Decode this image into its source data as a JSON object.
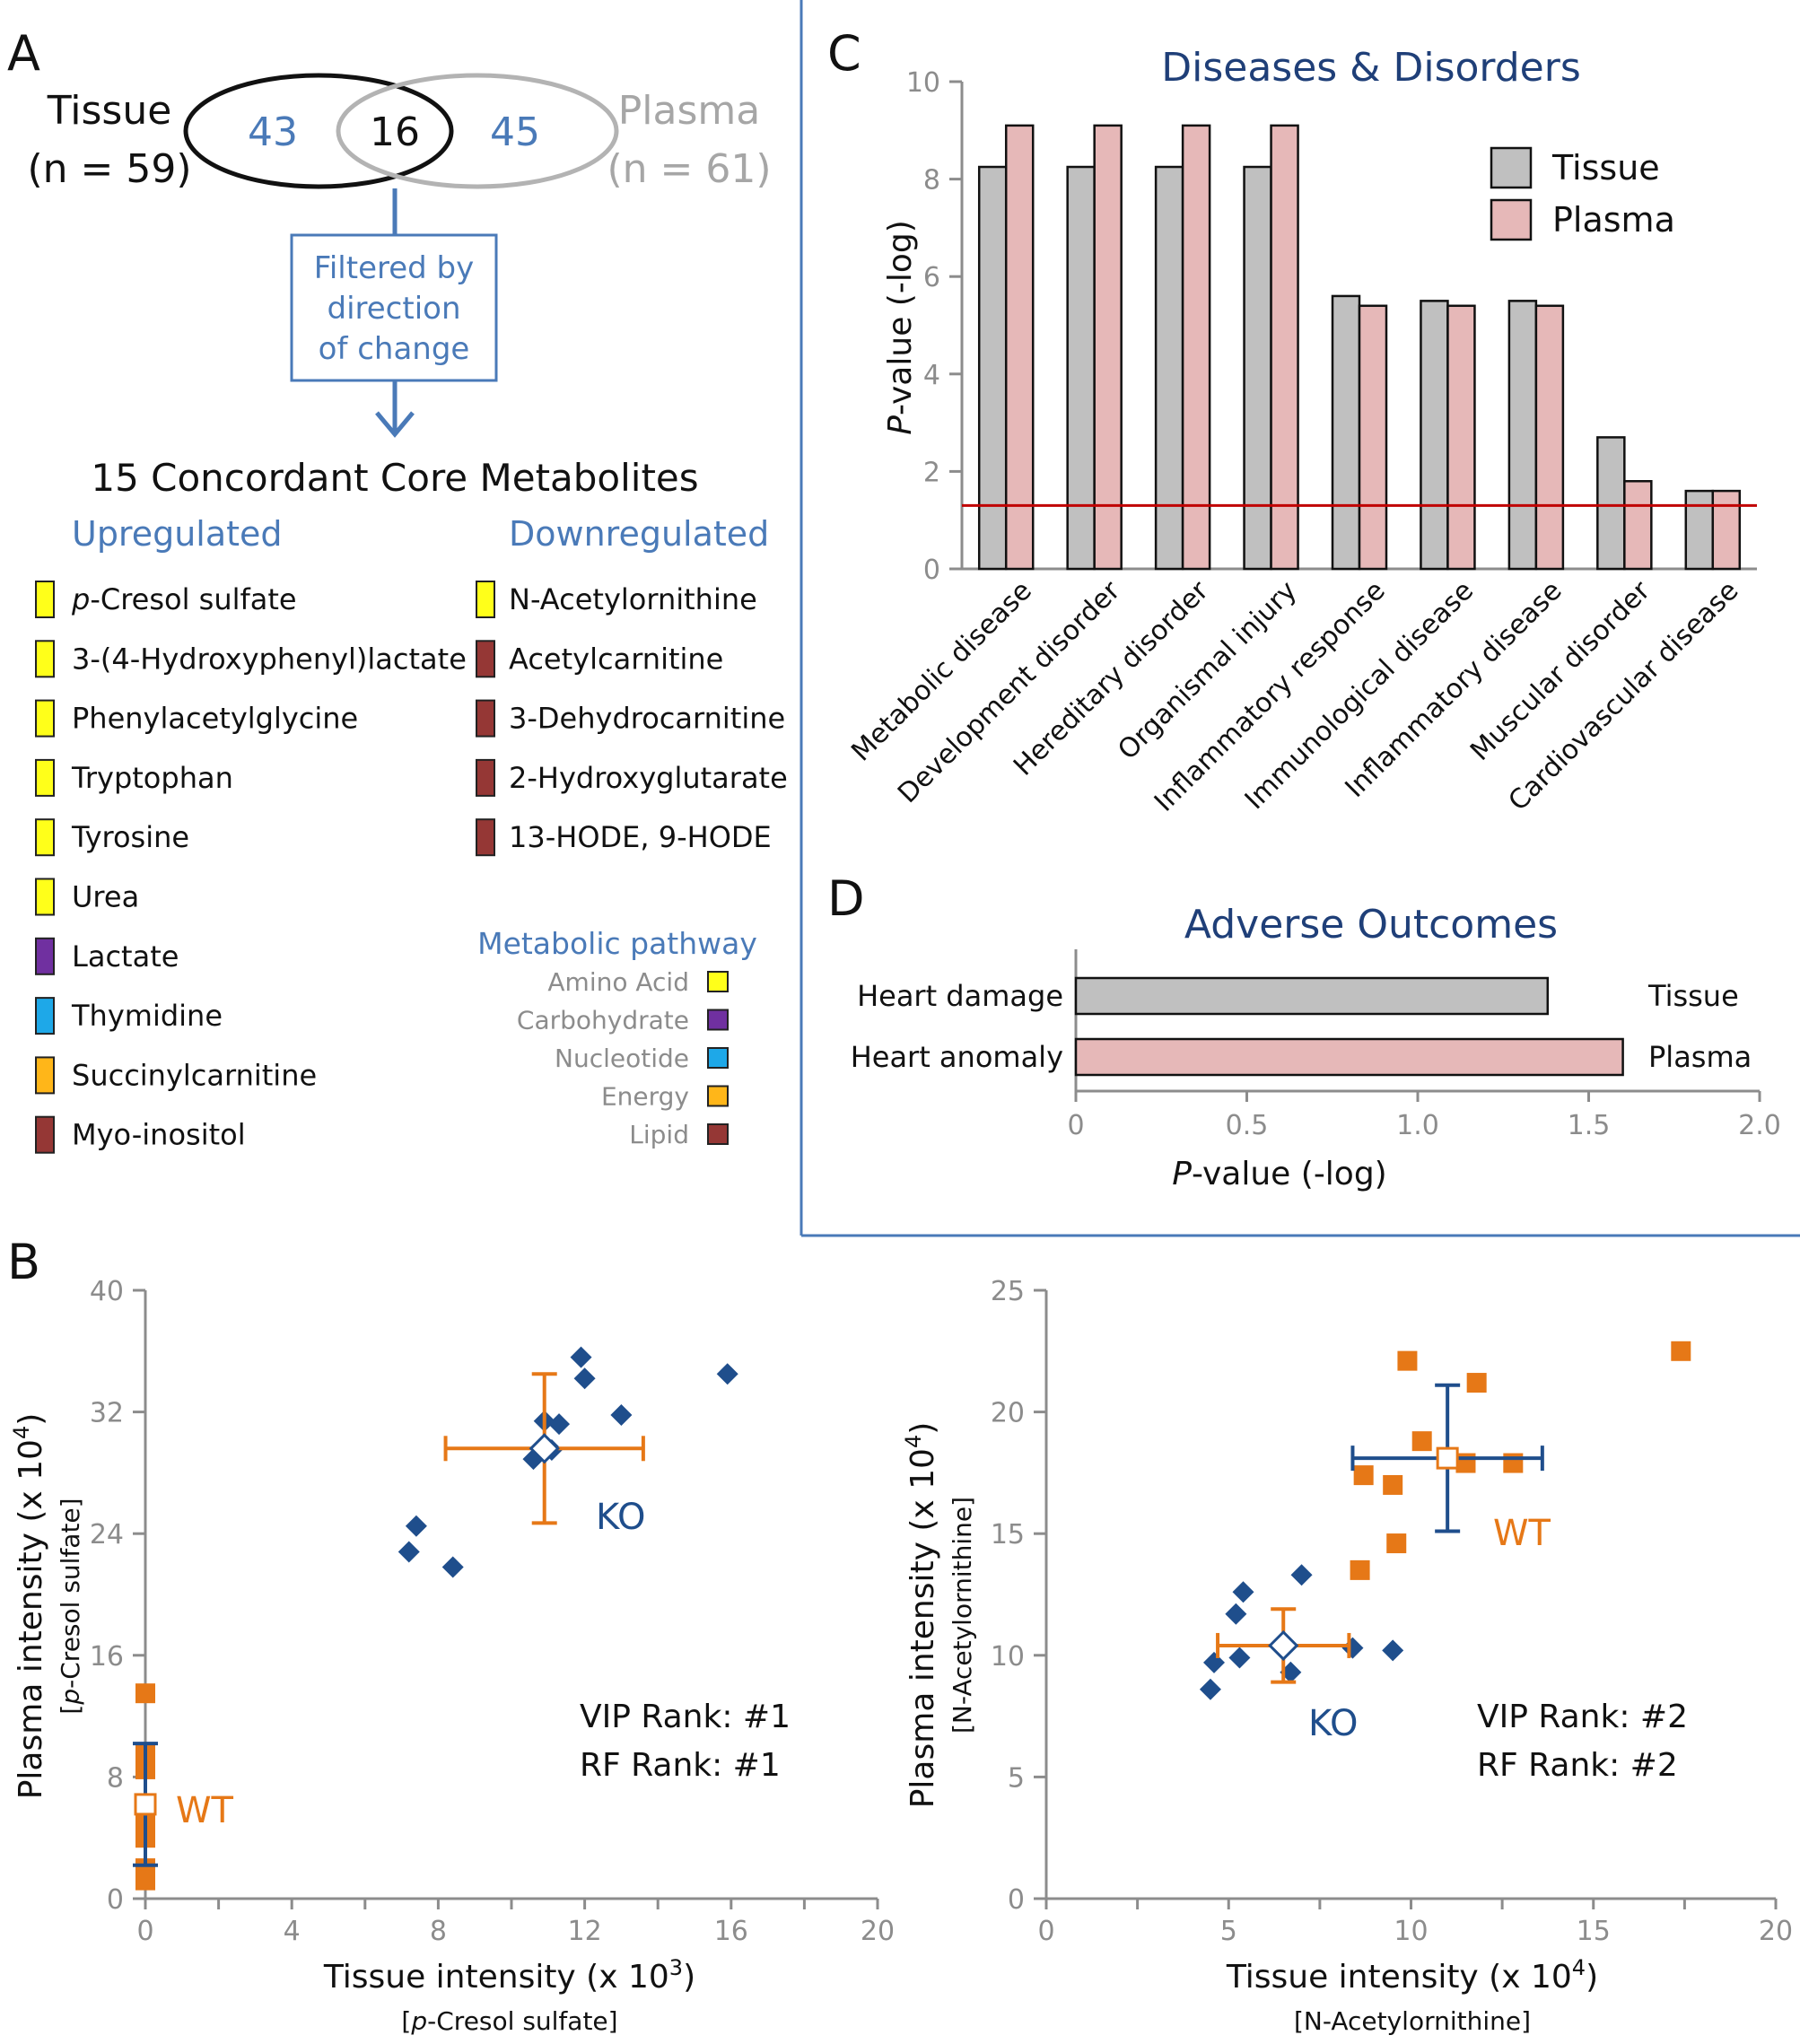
{
  "panels": {
    "A": {
      "letter": "A",
      "venn": {
        "left_name": "Tissue",
        "left_n": "(n = 59)",
        "right_name": "Plasma",
        "right_n": "(n = 61)",
        "left_only": "43",
        "overlap": "16",
        "right_only": "45"
      },
      "filter_lines": [
        "Filtered by",
        "direction",
        "of change"
      ],
      "core_title": "15 Concordant Core Metabolites",
      "upregulated_head": "Upregulated",
      "downregulated_head": "Downregulated",
      "upregulated": [
        {
          "prefix": "p",
          "name": "-Cresol sulfate",
          "pathway": "Amino Acid"
        },
        {
          "prefix": "",
          "name": "3-(4-Hydroxyphenyl)lactate",
          "pathway": "Amino Acid"
        },
        {
          "prefix": "",
          "name": "Phenylacetylglycine",
          "pathway": "Amino Acid"
        },
        {
          "prefix": "",
          "name": "Tryptophan",
          "pathway": "Amino Acid"
        },
        {
          "prefix": "",
          "name": "Tyrosine",
          "pathway": "Amino Acid"
        },
        {
          "prefix": "",
          "name": "Urea",
          "pathway": "Amino Acid"
        },
        {
          "prefix": "",
          "name": "Lactate",
          "pathway": "Carbohydrate"
        },
        {
          "prefix": "",
          "name": "Thymidine",
          "pathway": "Nucleotide"
        },
        {
          "prefix": "",
          "name": "Succinylcarnitine",
          "pathway": "Energy"
        },
        {
          "prefix": "",
          "name": "Myo-inositol",
          "pathway": "Lipid"
        }
      ],
      "downregulated": [
        {
          "name": "N-Acetylornithine",
          "pathway": "Amino Acid"
        },
        {
          "name": "Acetylcarnitine",
          "pathway": "Lipid"
        },
        {
          "name": "3-Dehydrocarnitine",
          "pathway": "Lipid"
        },
        {
          "name": "2-Hydroxyglutarate",
          "pathway": "Lipid"
        },
        {
          "name": "13-HODE, 9-HODE",
          "pathway": "Lipid"
        }
      ],
      "pathway_legend_head": "Metabolic pathway",
      "pathway_legend": [
        {
          "name": "Amino Acid",
          "color": "#ffff1a"
        },
        {
          "name": "Carbohydrate",
          "color": "#7030a0"
        },
        {
          "name": "Nucleotide",
          "color": "#1ea8e8"
        },
        {
          "name": "Energy",
          "color": "#ffb619"
        },
        {
          "name": "Lipid",
          "color": "#953735"
        }
      ]
    },
    "B": {
      "letter": "B"
    },
    "C": {
      "letter": "C"
    },
    "D": {
      "letter": "D"
    }
  },
  "colors": {
    "tissue": "#c0c0c0",
    "plasma": "#e6b8b8",
    "ko": "#1f4e8c",
    "wt": "#e67817",
    "threshold": "#c00000",
    "blue_text": "#4a7ab8",
    "title_blue": "#1f3f78",
    "frame_blue": "#4a7ab8"
  },
  "chart_data": [
    {
      "id": "C",
      "type": "bar",
      "title": "Diseases & Disorders",
      "ylabel_italic": "P",
      "ylabel_rest": "-value (-log)",
      "ylim": [
        0,
        10
      ],
      "yticks": [
        0,
        2,
        4,
        6,
        8,
        10
      ],
      "threshold": 1.3,
      "categories": [
        "Metabolic disease",
        "Development disorder",
        "Hereditary disorder",
        "Organismal injury",
        "Inflammatory response",
        "Immunological disease",
        "Inflammatory disease",
        "Muscular disorder",
        "Cardiovascular disease"
      ],
      "series": [
        {
          "name": "Tissue",
          "values": [
            8.25,
            8.25,
            8.25,
            8.25,
            5.6,
            5.5,
            5.5,
            2.7,
            1.6
          ]
        },
        {
          "name": "Plasma",
          "values": [
            9.1,
            9.1,
            9.1,
            9.1,
            5.4,
            5.4,
            5.4,
            1.8,
            1.6
          ]
        }
      ],
      "legend_position": "top-right"
    },
    {
      "id": "D",
      "type": "bar",
      "orientation": "horizontal",
      "title": "Adverse Outcomes",
      "xlabel_italic": "P",
      "xlabel_rest": "-value (-log)",
      "xlim": [
        0,
        2.0
      ],
      "xticks": [
        "0",
        "0.5",
        "1.0",
        "1.5",
        "2.0"
      ],
      "xtick_values": [
        0,
        0.5,
        1.0,
        1.5,
        2.0
      ],
      "categories": [
        "Heart damage",
        "Heart anomaly"
      ],
      "values": [
        1.38,
        1.6
      ],
      "series_labels": [
        "Tissue",
        "Plasma"
      ]
    },
    {
      "id": "B-left",
      "type": "scatter",
      "xlabel": "Tissue intensity (x 10",
      "xlabel_exp": "3",
      "xlabel_close": ")",
      "xsub_italic": "p",
      "xsub_rest": "-Cresol sulfate]",
      "ylabel": "Plasma intensity (x 10",
      "ylabel_exp": "4",
      "ylabel_close": ")",
      "ysub_italic": "p",
      "ysub_rest": "-Cresol sulfate]",
      "xlim": [
        0,
        20
      ],
      "ylim": [
        0,
        40
      ],
      "xticks": [
        0,
        4,
        8,
        12,
        16,
        20
      ],
      "yticks": [
        0,
        8,
        16,
        24,
        32,
        40
      ],
      "ko_points": [
        [
          7.2,
          22.8
        ],
        [
          7.4,
          24.5
        ],
        [
          8.4,
          21.8
        ],
        [
          10.6,
          28.9
        ],
        [
          10.9,
          31.4
        ],
        [
          11.1,
          29.5
        ],
        [
          11.3,
          31.2
        ],
        [
          11.9,
          35.6
        ],
        [
          12.0,
          34.2
        ],
        [
          13.0,
          31.8
        ],
        [
          15.9,
          34.5
        ]
      ],
      "wt_points": [
        [
          0,
          13.5
        ],
        [
          0,
          9.5
        ],
        [
          0,
          8.5
        ],
        [
          0,
          5.0
        ],
        [
          0,
          4.0
        ],
        [
          0,
          2.0
        ],
        [
          0,
          1.2
        ],
        [
          0,
          6.2
        ]
      ],
      "ko_mean": {
        "x": 10.9,
        "y": 29.6,
        "xerr": 2.7,
        "yerr": 4.9
      },
      "wt_mean": {
        "x": 0,
        "y": 6.2,
        "xerr": 0,
        "yerr": 4.0
      },
      "ko_label": "KO",
      "wt_label": "WT",
      "vip_rank": "VIP Rank: #1",
      "rf_rank": "RF Rank: #1"
    },
    {
      "id": "B-right",
      "type": "scatter",
      "xlabel": "Tissue intensity (x 10",
      "xlabel_exp": "4",
      "xlabel_close": ")",
      "xsub": "[N-Acetylornithine]",
      "ylabel": "Plasma intensity (x 10",
      "ylabel_exp": "4",
      "ylabel_close": ")",
      "ysub": "[N-Acetylornithine]",
      "xlim": [
        0,
        20
      ],
      "ylim": [
        0,
        25
      ],
      "xticks": [
        0,
        5,
        10,
        15,
        20
      ],
      "yticks": [
        0,
        5,
        10,
        15,
        20,
        25
      ],
      "ko_points": [
        [
          4.5,
          8.6
        ],
        [
          4.6,
          9.7
        ],
        [
          5.2,
          11.7
        ],
        [
          5.3,
          9.9
        ],
        [
          5.4,
          12.6
        ],
        [
          6.7,
          9.3
        ],
        [
          7.0,
          13.3
        ],
        [
          8.4,
          10.3
        ],
        [
          9.5,
          10.2
        ]
      ],
      "wt_points": [
        [
          8.6,
          13.5
        ],
        [
          8.7,
          17.4
        ],
        [
          9.5,
          17.0
        ],
        [
          9.6,
          14.6
        ],
        [
          9.9,
          22.1
        ],
        [
          10.3,
          18.8
        ],
        [
          11.5,
          17.9
        ],
        [
          11.8,
          21.2
        ],
        [
          12.8,
          17.9
        ],
        [
          17.4,
          22.5
        ]
      ],
      "ko_mean": {
        "x": 6.5,
        "y": 10.4,
        "xerr": 1.8,
        "yerr": 1.5
      },
      "wt_mean": {
        "x": 11.0,
        "y": 18.1,
        "xerr": 2.6,
        "yerr": 3.0
      },
      "ko_label": "KO",
      "wt_label": "WT",
      "vip_rank": "VIP Rank: #2",
      "rf_rank": "RF Rank: #2"
    }
  ]
}
